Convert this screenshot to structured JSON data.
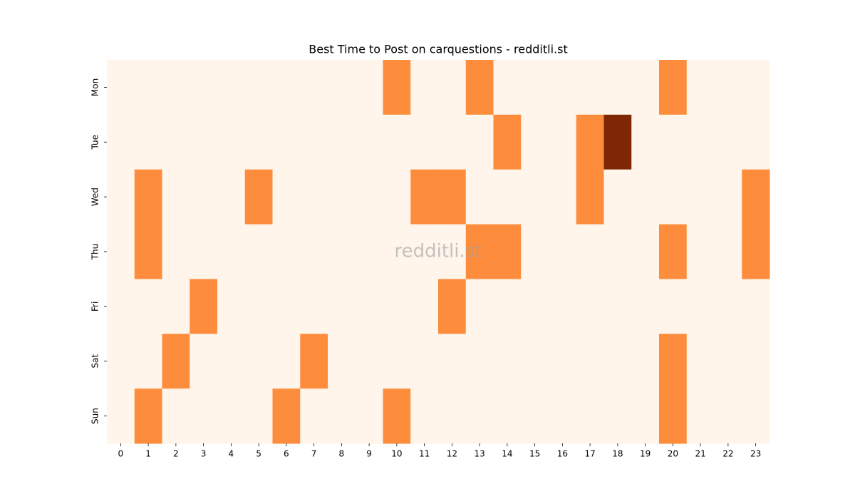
{
  "chart_data": {
    "type": "heatmap",
    "title": "Best Time to Post on carquestions - redditli.st",
    "watermark": "redditli.st",
    "x": [
      0,
      1,
      2,
      3,
      4,
      5,
      6,
      7,
      8,
      9,
      10,
      11,
      12,
      13,
      14,
      15,
      16,
      17,
      18,
      19,
      20,
      21,
      22,
      23
    ],
    "y": [
      "Mon",
      "Tue",
      "Wed",
      "Thu",
      "Fri",
      "Sat",
      "Sun"
    ],
    "z": [
      [
        0,
        0,
        0,
        0,
        0,
        0,
        0,
        0,
        0,
        0,
        1,
        0,
        0,
        1,
        0,
        0,
        0,
        0,
        0,
        0,
        1,
        0,
        0,
        0
      ],
      [
        0,
        0,
        0,
        0,
        0,
        0,
        0,
        0,
        0,
        0,
        0,
        0,
        0,
        0,
        1,
        0,
        0,
        1,
        2,
        0,
        0,
        0,
        0,
        0
      ],
      [
        0,
        1,
        0,
        0,
        0,
        1,
        0,
        0,
        0,
        0,
        0,
        1,
        1,
        0,
        0,
        0,
        0,
        1,
        0,
        0,
        0,
        0,
        0,
        1
      ],
      [
        0,
        1,
        0,
        0,
        0,
        0,
        0,
        0,
        0,
        0,
        0,
        0,
        0,
        1,
        1,
        0,
        0,
        0,
        0,
        0,
        1,
        0,
        0,
        1
      ],
      [
        0,
        0,
        0,
        1,
        0,
        0,
        0,
        0,
        0,
        0,
        0,
        0,
        1,
        0,
        0,
        0,
        0,
        0,
        0,
        0,
        0,
        0,
        0,
        0
      ],
      [
        0,
        0,
        1,
        0,
        0,
        0,
        0,
        1,
        0,
        0,
        0,
        0,
        0,
        0,
        0,
        0,
        0,
        0,
        0,
        0,
        1,
        0,
        0,
        0
      ],
      [
        0,
        1,
        0,
        0,
        0,
        0,
        1,
        0,
        0,
        0,
        1,
        0,
        0,
        0,
        0,
        0,
        0,
        0,
        0,
        0,
        1,
        0,
        0,
        0
      ]
    ],
    "zlim": [
      0,
      2
    ],
    "colormap": [
      "#fff5eb",
      "#fd8d3c",
      "#7f2704"
    ]
  }
}
